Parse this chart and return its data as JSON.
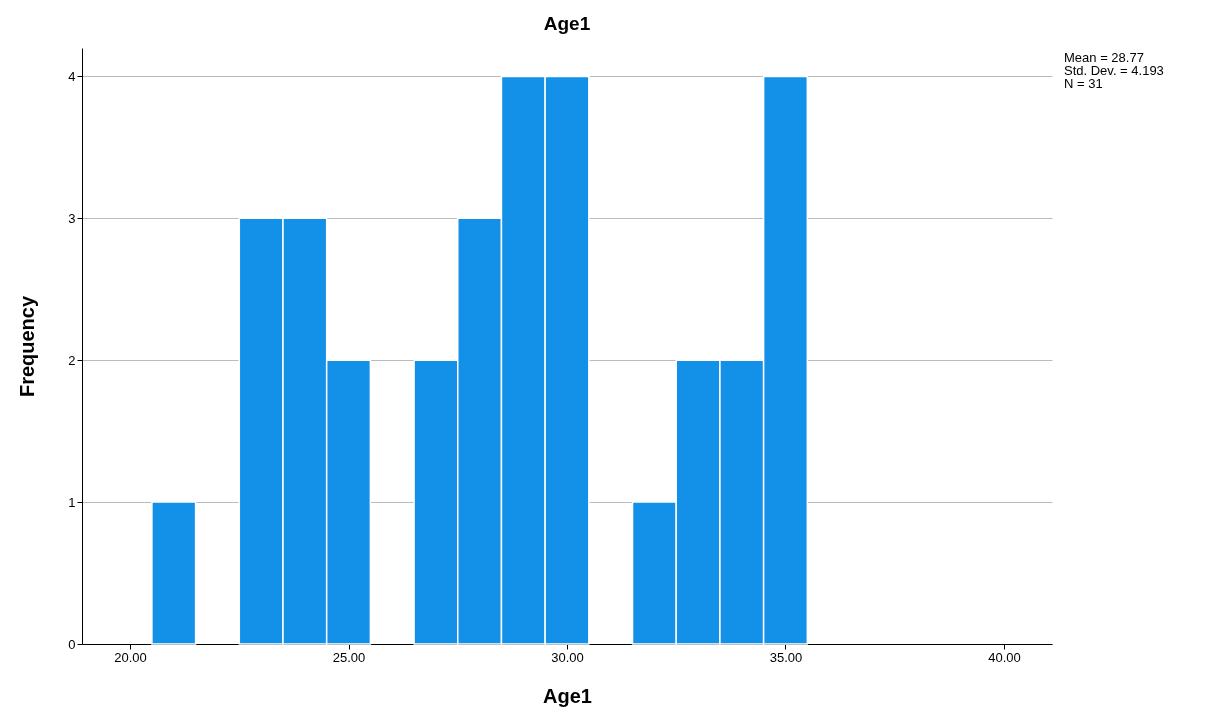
{
  "chart_data": {
    "type": "histogram",
    "title": "Age1",
    "xlabel": "Age1",
    "ylabel": "Frequency",
    "bins": [
      20.5,
      21.5,
      22.5,
      23.5,
      24.5,
      25.5,
      26.5,
      27.5,
      28.5,
      29.5,
      30.5,
      31.5,
      32.5,
      33.5,
      34.5,
      35.5
    ],
    "values": [
      1,
      0,
      3,
      3,
      2,
      0,
      2,
      3,
      4,
      4,
      0,
      1,
      2,
      2,
      4
    ],
    "color": "#1390e8",
    "xlim": [
      18.9,
      41.1
    ],
    "xticks": [
      {
        "value": 20,
        "label": "20.00"
      },
      {
        "value": 25,
        "label": "25.00"
      },
      {
        "value": 30,
        "label": "30.00"
      },
      {
        "value": 35,
        "label": "35.00"
      },
      {
        "value": 40,
        "label": "40.00"
      }
    ],
    "ylim": [
      0,
      4.2
    ],
    "yticks": [
      0,
      1,
      2,
      3,
      4
    ],
    "grid": "y",
    "annotations": [
      "Mean = 28.77",
      "Std. Dev. = 4.193",
      "N = 31"
    ]
  }
}
